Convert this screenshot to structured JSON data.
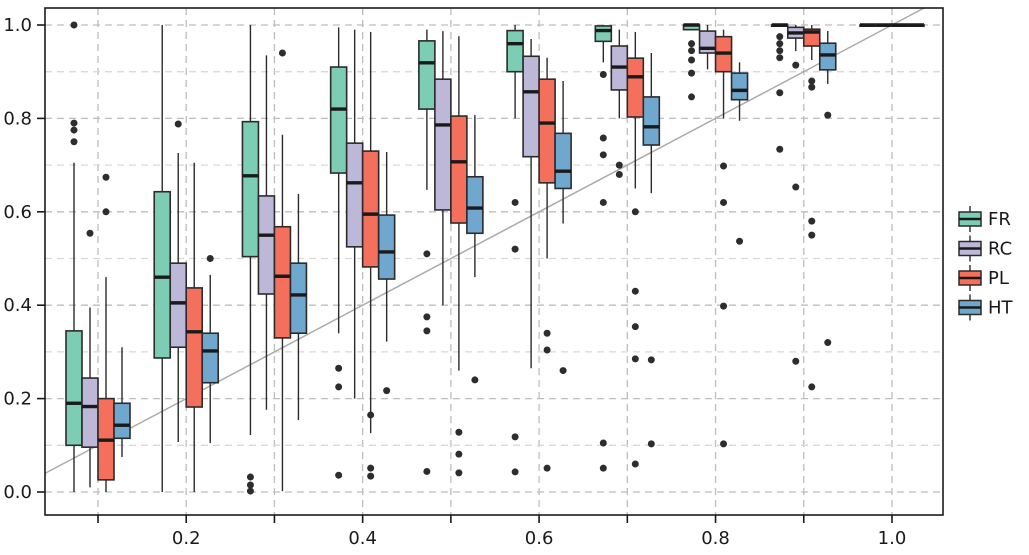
{
  "chart_data": {
    "type": "boxplot",
    "title": "",
    "xlabel": "",
    "ylabel": "",
    "x_range": [
      0.04,
      1.058
    ],
    "y_range": [
      -0.05,
      1.037
    ],
    "grid": {
      "style": "dashed",
      "step": 0.1,
      "major_color": "#bdbdbd",
      "minor_color": "#d9d9d9"
    },
    "reference_line": {
      "type": "identity y=x",
      "color": "#ababab"
    },
    "legend_position": "right",
    "series": [
      {
        "id": "FR",
        "label": "FR",
        "color": "#7ccdb4"
      },
      {
        "id": "RC",
        "label": "RC",
        "color": "#bdb8d8"
      },
      {
        "id": "PL",
        "label": "PL",
        "color": "#f4705c"
      },
      {
        "id": "HT",
        "label": "HT",
        "color": "#6fa7ce"
      }
    ],
    "x_tick_positions": [
      0.1,
      0.2,
      0.3,
      0.4,
      0.5,
      0.6,
      0.7,
      0.8,
      0.9,
      1.0
    ],
    "x_tick_labels": [
      {
        "value": 0.2,
        "label": "0.2"
      },
      {
        "value": 0.4,
        "label": "0.4"
      },
      {
        "value": 0.6,
        "label": "0.6"
      },
      {
        "value": 0.8,
        "label": "0.8"
      },
      {
        "value": 1.0,
        "label": "1.0"
      }
    ],
    "y_tick_labels": [
      {
        "value": 0.0,
        "label": "0.0"
      },
      {
        "value": 0.2,
        "label": "0.2"
      },
      {
        "value": 0.4,
        "label": "0.4"
      },
      {
        "value": 0.6,
        "label": "0.6"
      },
      {
        "value": 0.8,
        "label": "0.8"
      },
      {
        "value": 1.0,
        "label": "1.0"
      }
    ],
    "groups": [
      {
        "x": 0.1,
        "boxes": [
          {
            "series": "FR",
            "whislo": 0.0,
            "q1": 0.1,
            "med": 0.19,
            "q3": 0.345,
            "whishi": 0.705,
            "outliers": [
              0.75,
              0.775,
              0.79,
              1.0
            ]
          },
          {
            "series": "RC",
            "whislo": 0.01,
            "q1": 0.096,
            "med": 0.183,
            "q3": 0.244,
            "whishi": 0.395,
            "outliers": [
              0.554
            ]
          },
          {
            "series": "PL",
            "whislo": 0.0,
            "q1": 0.026,
            "med": 0.111,
            "q3": 0.2,
            "whishi": 0.46,
            "outliers": [
              0.6,
              0.674
            ]
          },
          {
            "series": "HT",
            "whislo": 0.075,
            "q1": 0.115,
            "med": 0.143,
            "q3": 0.19,
            "whishi": 0.31,
            "outliers": []
          }
        ]
      },
      {
        "x": 0.2,
        "boxes": [
          {
            "series": "FR",
            "whislo": 0.0,
            "q1": 0.287,
            "med": 0.46,
            "q3": 0.643,
            "whishi": 1.0,
            "outliers": []
          },
          {
            "series": "RC",
            "whislo": 0.107,
            "q1": 0.31,
            "med": 0.405,
            "q3": 0.49,
            "whishi": 0.726,
            "outliers": [
              0.788
            ]
          },
          {
            "series": "PL",
            "whislo": 0.0,
            "q1": 0.182,
            "med": 0.343,
            "q3": 0.437,
            "whishi": 0.705,
            "outliers": []
          },
          {
            "series": "HT",
            "whislo": 0.105,
            "q1": 0.234,
            "med": 0.302,
            "q3": 0.34,
            "whishi": 0.465,
            "outliers": [
              0.5
            ]
          }
        ]
      },
      {
        "x": 0.3,
        "boxes": [
          {
            "series": "FR",
            "whislo": 0.122,
            "q1": 0.504,
            "med": 0.677,
            "q3": 0.793,
            "whishi": 1.0,
            "outliers": [
              0.032,
              0.015,
              0.002
            ]
          },
          {
            "series": "RC",
            "whislo": 0.176,
            "q1": 0.424,
            "med": 0.55,
            "q3": 0.634,
            "whishi": 0.935,
            "outliers": []
          },
          {
            "series": "PL",
            "whislo": 0.002,
            "q1": 0.33,
            "med": 0.462,
            "q3": 0.568,
            "whishi": 0.765,
            "outliers": [
              0.94
            ]
          },
          {
            "series": "HT",
            "whislo": 0.154,
            "q1": 0.34,
            "med": 0.422,
            "q3": 0.49,
            "whishi": 0.638,
            "outliers": []
          }
        ]
      },
      {
        "x": 0.4,
        "boxes": [
          {
            "series": "FR",
            "whislo": 0.34,
            "q1": 0.683,
            "med": 0.82,
            "q3": 0.91,
            "whishi": 0.995,
            "outliers": [
              0.265,
              0.225,
              0.036
            ]
          },
          {
            "series": "RC",
            "whislo": 0.2,
            "q1": 0.525,
            "med": 0.662,
            "q3": 0.747,
            "whishi": 0.99,
            "outliers": []
          },
          {
            "series": "PL",
            "whislo": 0.126,
            "q1": 0.482,
            "med": 0.595,
            "q3": 0.73,
            "whishi": 0.985,
            "outliers": [
              0.165,
              0.051,
              0.034
            ]
          },
          {
            "series": "HT",
            "whislo": 0.322,
            "q1": 0.456,
            "med": 0.514,
            "q3": 0.593,
            "whishi": 0.728,
            "outliers": [
              0.217
            ]
          }
        ]
      },
      {
        "x": 0.5,
        "boxes": [
          {
            "series": "FR",
            "whislo": 0.647,
            "q1": 0.82,
            "med": 0.919,
            "q3": 0.966,
            "whishi": 0.99,
            "outliers": [
              0.51,
              0.375,
              0.345,
              0.044
            ]
          },
          {
            "series": "RC",
            "whislo": 0.4,
            "q1": 0.604,
            "med": 0.786,
            "q3": 0.884,
            "whishi": 0.987,
            "outliers": []
          },
          {
            "series": "PL",
            "whislo": 0.26,
            "q1": 0.576,
            "med": 0.707,
            "q3": 0.805,
            "whishi": 0.976,
            "outliers": [
              0.128,
              0.081,
              0.041
            ]
          },
          {
            "series": "HT",
            "whislo": 0.46,
            "q1": 0.554,
            "med": 0.608,
            "q3": 0.675,
            "whishi": 0.807,
            "outliers": [
              0.24
            ]
          }
        ]
      },
      {
        "x": 0.6,
        "boxes": [
          {
            "series": "FR",
            "whislo": 0.8,
            "q1": 0.9,
            "med": 0.96,
            "q3": 0.988,
            "whishi": 1.0,
            "outliers": [
              0.62,
              0.52,
              0.118,
              0.043
            ]
          },
          {
            "series": "RC",
            "whislo": 0.265,
            "q1": 0.718,
            "med": 0.857,
            "q3": 0.933,
            "whishi": 0.97,
            "outliers": []
          },
          {
            "series": "PL",
            "whislo": 0.5,
            "q1": 0.662,
            "med": 0.79,
            "q3": 0.884,
            "whishi": 0.93,
            "outliers": [
              0.34,
              0.304,
              0.051
            ]
          },
          {
            "series": "HT",
            "whislo": 0.575,
            "q1": 0.65,
            "med": 0.687,
            "q3": 0.768,
            "whishi": 0.88,
            "outliers": [
              0.26
            ]
          }
        ]
      },
      {
        "x": 0.7,
        "boxes": [
          {
            "series": "FR",
            "whislo": 0.92,
            "q1": 0.965,
            "med": 0.988,
            "q3": 0.998,
            "whishi": 1.0,
            "outliers": [
              0.894,
              0.758,
              0.722,
              0.62,
              0.105,
              0.051
            ]
          },
          {
            "series": "RC",
            "whislo": 0.8,
            "q1": 0.861,
            "med": 0.91,
            "q3": 0.955,
            "whishi": 0.99,
            "outliers": [
              0.7,
              0.68
            ]
          },
          {
            "series": "PL",
            "whislo": 0.65,
            "q1": 0.803,
            "med": 0.889,
            "q3": 0.929,
            "whishi": 0.985,
            "outliers": [
              0.6,
              0.43,
              0.354,
              0.285,
              0.06
            ]
          },
          {
            "series": "HT",
            "whislo": 0.64,
            "q1": 0.743,
            "med": 0.782,
            "q3": 0.846,
            "whishi": 0.94,
            "outliers": [
              0.283,
              0.103
            ]
          }
        ]
      },
      {
        "x": 0.8,
        "boxes": [
          {
            "series": "FR",
            "whislo": 0.99,
            "q1": 0.99,
            "med": 1.0,
            "q3": 1.0,
            "whishi": 1.0,
            "outliers": [
              0.96,
              0.945,
              0.925,
              0.897,
              0.846
            ]
          },
          {
            "series": "RC",
            "whislo": 0.905,
            "q1": 0.94,
            "med": 0.95,
            "q3": 0.987,
            "whishi": 1.0,
            "outliers": []
          },
          {
            "series": "PL",
            "whislo": 0.8,
            "q1": 0.9,
            "med": 0.94,
            "q3": 0.975,
            "whishi": 0.99,
            "outliers": [
              0.698,
              0.62,
              0.398,
              0.103
            ]
          },
          {
            "series": "HT",
            "whislo": 0.795,
            "q1": 0.84,
            "med": 0.86,
            "q3": 0.897,
            "whishi": 0.92,
            "outliers": [
              0.537
            ]
          }
        ]
      },
      {
        "x": 0.9,
        "boxes": [
          {
            "series": "FR",
            "whislo": 1.0,
            "q1": 1.0,
            "med": 1.0,
            "q3": 1.0,
            "whishi": 1.0,
            "outliers": [
              0.975,
              0.96,
              0.945,
              0.93,
              0.855,
              0.734
            ]
          },
          {
            "series": "RC",
            "whislo": 0.944,
            "q1": 0.972,
            "med": 0.983,
            "q3": 0.995,
            "whishi": 1.0,
            "outliers": [
              0.914,
              0.653,
              0.28
            ]
          },
          {
            "series": "PL",
            "whislo": 0.925,
            "q1": 0.955,
            "med": 0.985,
            "q3": 0.991,
            "whishi": 1.0,
            "outliers": [
              0.88,
              0.867,
              0.58,
              0.55,
              0.225
            ]
          },
          {
            "series": "HT",
            "whislo": 0.874,
            "q1": 0.904,
            "med": 0.936,
            "q3": 0.961,
            "whishi": 0.987,
            "outliers": [
              0.807,
              0.32
            ]
          }
        ]
      },
      {
        "x": 1.0,
        "boxes": [
          {
            "series": "FR",
            "whislo": 1.0,
            "q1": 1.0,
            "med": 1.0,
            "q3": 1.0,
            "whishi": 1.0,
            "outliers": []
          },
          {
            "series": "RC",
            "whislo": 1.0,
            "q1": 1.0,
            "med": 1.0,
            "q3": 1.0,
            "whishi": 1.0,
            "outliers": []
          },
          {
            "series": "PL",
            "whislo": 1.0,
            "q1": 1.0,
            "med": 1.0,
            "q3": 1.0,
            "whishi": 1.0,
            "outliers": []
          },
          {
            "series": "HT",
            "whislo": 1.0,
            "q1": 1.0,
            "med": 1.0,
            "q3": 1.0,
            "whishi": 1.0,
            "outliers": []
          }
        ]
      }
    ]
  },
  "legend": {
    "items": [
      {
        "label": "FR",
        "color": "#7ccdb4"
      },
      {
        "label": "RC",
        "color": "#bdb8d8"
      },
      {
        "label": "PL",
        "color": "#f4705c"
      },
      {
        "label": "HT",
        "color": "#6fa7ce"
      }
    ]
  },
  "style": {
    "box_stroke": "#2b2b2b",
    "median_color": "#1a1a1a",
    "outlier_color": "#2d2d2d",
    "axis_color": "#1a1a1a",
    "background": "#ffffff"
  }
}
